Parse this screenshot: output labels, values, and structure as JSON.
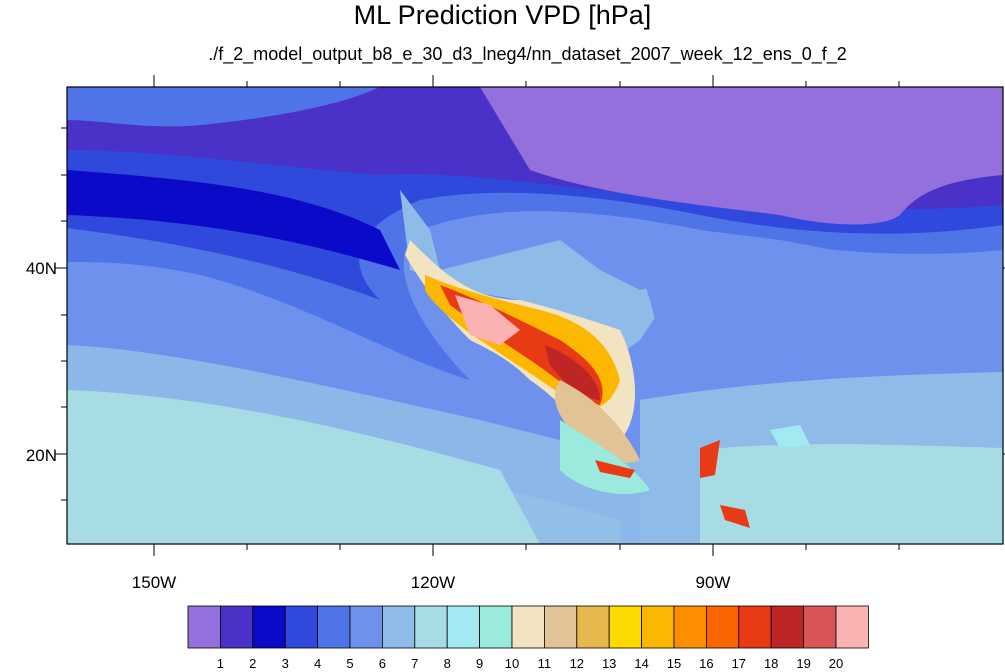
{
  "title": "ML Prediction VPD [hPa]",
  "subtitle": "./f_2_model_output_b8_e_30_d3_lneg4/nn_dataset_2007_week_12_ens_0_f_2",
  "lat_labels": [
    "40N",
    "20N"
  ],
  "lon_labels": [
    "150W",
    "120W",
    "90W"
  ],
  "colorbar": {
    "labels": [
      "1",
      "2",
      "3",
      "4",
      "5",
      "6",
      "7",
      "8",
      "9",
      "10",
      "11",
      "12",
      "13",
      "14",
      "15",
      "16",
      "17",
      "18",
      "19",
      "20"
    ],
    "colors": [
      "#9370DB",
      "#4A31C8",
      "#0B0AC8",
      "#2E49DC",
      "#4F74E8",
      "#6E91EE",
      "#8EBBE8",
      "#A8DCE4",
      "#A2E9F2",
      "#9AEBDD",
      "#F2E4C1",
      "#E2C397",
      "#E7B84E",
      "#FCDA00",
      "#FCB800",
      "#FC8E00",
      "#FB6500",
      "#E73A15",
      "#BE2525",
      "#D95656",
      "#FCB2B2"
    ]
  }
}
